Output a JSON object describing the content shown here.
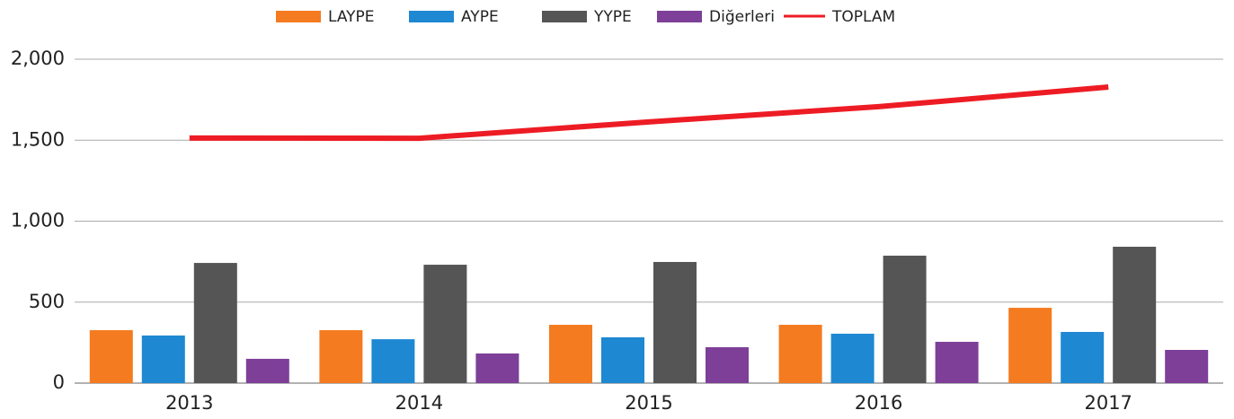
{
  "chart_data": {
    "type": "bar",
    "categories": [
      "2013",
      "2014",
      "2015",
      "2016",
      "2017"
    ],
    "series": [
      {
        "name": "LAYPE",
        "color": "#f47b20",
        "values": [
          327,
          327,
          360,
          360,
          465
        ]
      },
      {
        "name": "AYPE",
        "color": "#1e88d2",
        "values": [
          294,
          271,
          283,
          305,
          316
        ]
      },
      {
        "name": "YYPE",
        "color": "#555555",
        "values": [
          742,
          731,
          748,
          787,
          842
        ]
      },
      {
        "name": "Diğerleri",
        "color": "#7d3f98",
        "values": [
          150,
          183,
          222,
          255,
          205
        ]
      },
      {
        "name": "TOPLAM",
        "color": "#ed1c24",
        "type": "line",
        "values": [
          1513,
          1512,
          1613,
          1707,
          1828
        ]
      }
    ],
    "ylim": [
      0,
      2000
    ],
    "yticks": [
      0,
      {
        "value": 500,
        "label": "500"
      },
      {
        "value": 1000,
        "label": "1,000"
      },
      {
        "value": 1500,
        "label": "1,500"
      },
      {
        "value": 2000,
        "label": "2,000"
      }
    ],
    "grid": true,
    "legend": "top"
  }
}
